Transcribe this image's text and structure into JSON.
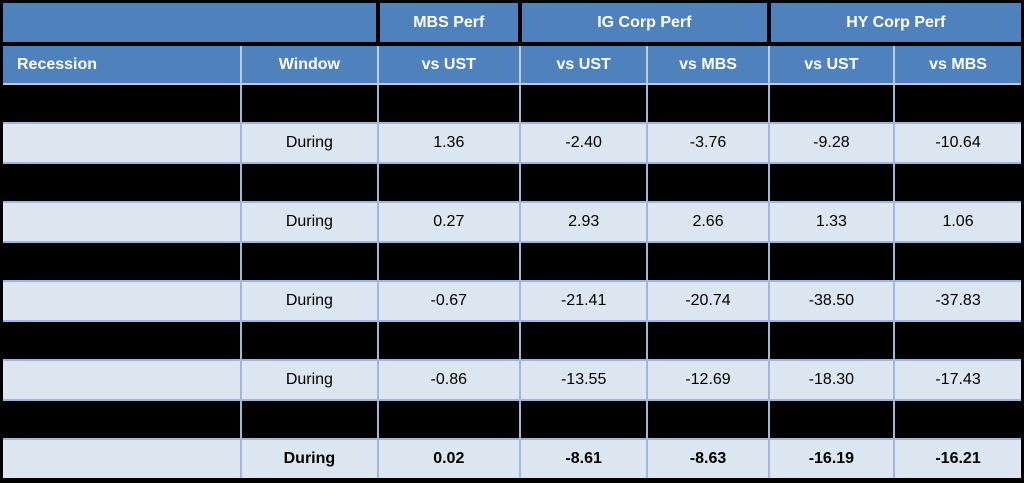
{
  "chart_data": {
    "type": "table",
    "column_groups": [
      {
        "label": "",
        "span": 2
      },
      {
        "label": "MBS Perf",
        "span": 1
      },
      {
        "label": "IG Corp Perf",
        "span": 2
      },
      {
        "label": "HY Corp Perf",
        "span": 2
      }
    ],
    "columns": [
      "Recession",
      "Window",
      "vs UST",
      "vs UST",
      "vs MBS",
      "vs UST",
      "vs MBS"
    ],
    "rows": [
      {
        "redacted": true,
        "bold": false,
        "cells": [
          "",
          "",
          "",
          "",
          "",
          "",
          ""
        ]
      },
      {
        "redacted": false,
        "bold": false,
        "cells": [
          "",
          "During",
          "1.36",
          "-2.40",
          "-3.76",
          "-9.28",
          "-10.64"
        ]
      },
      {
        "redacted": true,
        "bold": false,
        "cells": [
          "",
          "",
          "",
          "",
          "",
          "",
          ""
        ]
      },
      {
        "redacted": false,
        "bold": false,
        "cells": [
          "",
          "During",
          "0.27",
          "2.93",
          "2.66",
          "1.33",
          "1.06"
        ]
      },
      {
        "redacted": true,
        "bold": false,
        "cells": [
          "",
          "",
          "",
          "",
          "",
          "",
          ""
        ]
      },
      {
        "redacted": false,
        "bold": false,
        "cells": [
          "",
          "During",
          "-0.67",
          "-21.41",
          "-20.74",
          "-38.50",
          "-37.83"
        ]
      },
      {
        "redacted": true,
        "bold": false,
        "cells": [
          "",
          "",
          "",
          "",
          "",
          "",
          ""
        ]
      },
      {
        "redacted": false,
        "bold": false,
        "cells": [
          "",
          "During",
          "-0.86",
          "-13.55",
          "-12.69",
          "-18.30",
          "-17.43"
        ]
      },
      {
        "redacted": true,
        "bold": false,
        "cells": [
          "",
          "",
          "",
          "",
          "",
          "",
          ""
        ]
      },
      {
        "redacted": false,
        "bold": true,
        "cells": [
          "",
          "During",
          "0.02",
          "-8.61",
          "-8.63",
          "-16.19",
          "-16.21"
        ]
      }
    ],
    "layout_hints": {
      "redacted_rows_note": "alternating rows blacked out",
      "grid": "on"
    }
  },
  "colors": {
    "header_bg": "#4f81bd",
    "header_text": "#ffffff",
    "light_row_bg": "#dce6f1",
    "redacted_bg": "#000000",
    "grid_line": "#9fb8d9",
    "heavy_border": "#000000",
    "body_text": "#000000"
  }
}
